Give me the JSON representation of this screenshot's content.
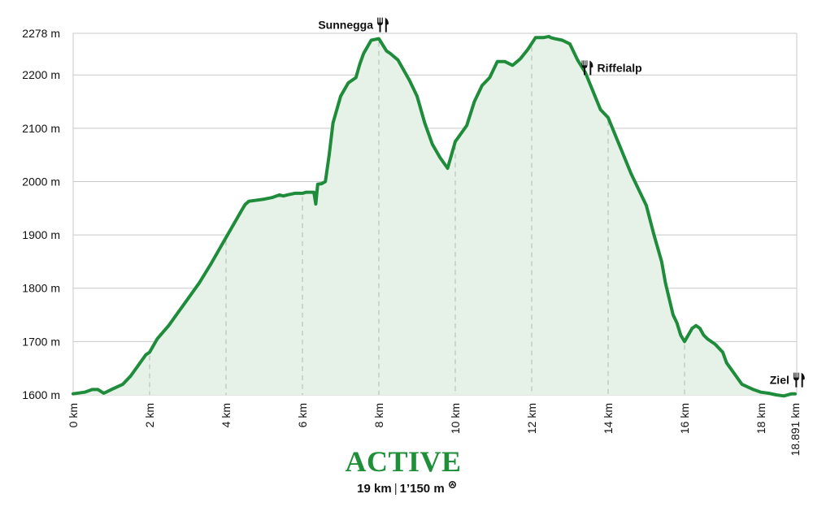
{
  "chart_data": {
    "type": "area",
    "x_unit": "km",
    "y_unit": "m",
    "xlim": [
      0,
      18.891
    ],
    "ylim": [
      1600,
      2278
    ],
    "y_ticks": [
      {
        "value": 1600,
        "label": "1600 m"
      },
      {
        "value": 1700,
        "label": "1700 m"
      },
      {
        "value": 1800,
        "label": "1800 m"
      },
      {
        "value": 1900,
        "label": "1900 m"
      },
      {
        "value": 2000,
        "label": "2000 m"
      },
      {
        "value": 2100,
        "label": "2100 m"
      },
      {
        "value": 2200,
        "label": "2200 m"
      },
      {
        "value": 2278,
        "label": "2278 m"
      }
    ],
    "x_ticks": [
      {
        "value": 0,
        "label": "0 km"
      },
      {
        "value": 2,
        "label": "2 km"
      },
      {
        "value": 4,
        "label": "4 km"
      },
      {
        "value": 6,
        "label": "6 km"
      },
      {
        "value": 8,
        "label": "8 km"
      },
      {
        "value": 10,
        "label": "10 km"
      },
      {
        "value": 12,
        "label": "12 km"
      },
      {
        "value": 14,
        "label": "14 km"
      },
      {
        "value": 16,
        "label": "16 km"
      },
      {
        "value": 18,
        "label": "18 km"
      },
      {
        "value": 18.891,
        "label": "18.891 km"
      }
    ],
    "grid": true,
    "line_color": "#1e8c3a",
    "fill_color": "#e6f2e8",
    "series": [
      {
        "x": [
          0,
          0.3,
          0.5,
          0.65,
          0.8,
          1.0,
          1.3,
          1.5,
          1.7,
          1.8,
          1.9,
          2.0,
          2.2,
          2.5,
          2.8,
          3.0,
          3.3,
          3.6,
          3.8,
          4.0,
          4.2,
          4.4,
          4.5,
          4.6,
          5.0,
          5.2,
          5.4,
          5.5,
          5.6,
          5.8,
          6.0,
          6.1,
          6.2,
          6.3,
          6.35,
          6.4,
          6.5,
          6.6,
          6.7,
          6.8,
          7.0,
          7.2,
          7.4,
          7.5,
          7.6,
          7.8,
          8.0,
          8.2,
          8.3,
          8.5,
          8.8,
          9.0,
          9.2,
          9.4,
          9.6,
          9.8,
          10.0,
          10.1,
          10.3,
          10.5,
          10.7,
          10.9,
          11.1,
          11.3,
          11.5,
          11.7,
          11.9,
          12.1,
          12.3,
          12.45,
          12.5,
          12.6,
          12.8,
          13.0,
          13.2,
          13.4,
          13.6,
          13.8,
          14.0,
          14.2,
          14.4,
          14.6,
          14.8,
          15.0,
          15.2,
          15.4,
          15.5,
          15.6,
          15.7,
          15.8,
          15.9,
          16.0,
          16.2,
          16.3,
          16.4,
          16.5,
          16.6,
          16.8,
          17.0,
          17.1,
          17.3,
          17.5,
          17.8,
          18.0,
          18.2,
          18.4,
          18.6,
          18.8,
          18.891
        ],
        "y": [
          1602,
          1605,
          1610,
          1610,
          1603,
          1610,
          1620,
          1635,
          1655,
          1665,
          1675,
          1680,
          1705,
          1730,
          1760,
          1780,
          1810,
          1845,
          1870,
          1895,
          1920,
          1945,
          1957,
          1963,
          1967,
          1970,
          1975,
          1973,
          1975,
          1978,
          1978,
          1980,
          1980,
          1980,
          1958,
          1995,
          1996,
          2000,
          2050,
          2110,
          2160,
          2185,
          2195,
          2220,
          2240,
          2265,
          2268,
          2245,
          2240,
          2228,
          2190,
          2160,
          2110,
          2070,
          2045,
          2025,
          2075,
          2085,
          2105,
          2150,
          2180,
          2195,
          2225,
          2225,
          2218,
          2230,
          2248,
          2270,
          2270,
          2272,
          2270,
          2268,
          2265,
          2258,
          2228,
          2205,
          2170,
          2135,
          2120,
          2085,
          2050,
          2015,
          1985,
          1955,
          1900,
          1850,
          1810,
          1780,
          1750,
          1735,
          1712,
          1700,
          1725,
          1730,
          1725,
          1712,
          1705,
          1695,
          1680,
          1660,
          1640,
          1620,
          1610,
          1605,
          1603,
          1600,
          1598,
          1602,
          1602
        ]
      }
    ],
    "annotations": [
      {
        "x": 8.0,
        "label": "Sunnegga",
        "side": "left",
        "icon": "restaurant-icon"
      },
      {
        "x": 13.5,
        "label": "Riffelalp",
        "side": "right",
        "icon": "restaurant-icon"
      },
      {
        "x": 18.891,
        "label": "Ziel",
        "side": "left",
        "icon": "restaurant-icon"
      }
    ]
  },
  "footer": {
    "brand": "ACTIVE",
    "distance": "19 km",
    "ascent": "1’150 m"
  },
  "colors": {
    "accent": "#1f8f3a",
    "grid": "#c8c8c8"
  }
}
